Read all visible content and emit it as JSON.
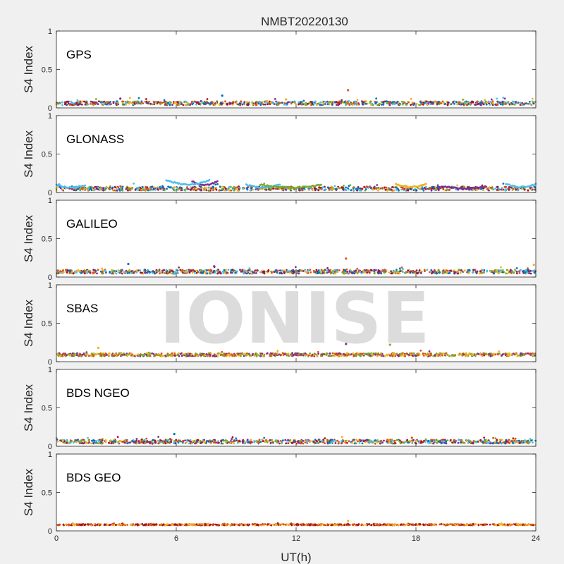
{
  "title": "NMBT20220130",
  "watermark": "IONISE",
  "chart_data": [
    {
      "type": "scatter",
      "label": "GPS",
      "ylabel": "S4 Index",
      "xlim": [
        0,
        24
      ],
      "ylim": [
        0,
        1
      ],
      "yticks": [
        0,
        0.5,
        1
      ],
      "ytick_labels": [
        "0",
        "0.5",
        "1"
      ],
      "base": 0.06,
      "spread": 0.05,
      "spikes": [
        [
          8.3,
          0.16
        ],
        [
          14.6,
          0.23
        ],
        [
          11.5,
          0.11
        ],
        [
          3.2,
          0.12
        ]
      ],
      "colors": [
        "#0072BD",
        "#D95319",
        "#EDB120",
        "#7E2F8E",
        "#77AC30",
        "#4DBEEE",
        "#A2142F"
      ]
    },
    {
      "type": "scatter",
      "label": "GLONASS",
      "ylabel": "S4 Index",
      "xlim": [
        0,
        24
      ],
      "ylim": [
        0,
        1
      ],
      "yticks": [
        0,
        0.5,
        1
      ],
      "ytick_labels": [
        "0",
        "0.5",
        "1"
      ],
      "base": 0.05,
      "spread": 0.05,
      "arcs": [
        [
          0,
          1.5,
          0.1,
          "#4DBEEE"
        ],
        [
          6.8,
          8.1,
          0.15,
          "#7E2F8E"
        ],
        [
          9.5,
          11.2,
          0.1,
          "#4DBEEE"
        ],
        [
          10.2,
          13.3,
          0.1,
          "#77AC30"
        ],
        [
          17,
          18.5,
          0.11,
          "#EDB120"
        ],
        [
          19.3,
          21.5,
          0.08,
          "#7E2F8E"
        ],
        [
          22.5,
          24,
          0.11,
          "#4DBEEE"
        ],
        [
          5.5,
          7.7,
          0.16,
          "#4DBEEE"
        ]
      ],
      "colors": [
        "#0072BD",
        "#D95319",
        "#EDB120",
        "#7E2F8E",
        "#77AC30",
        "#4DBEEE",
        "#A2142F"
      ]
    },
    {
      "type": "scatter",
      "label": "GALILEO",
      "ylabel": "S4 Index",
      "xlim": [
        0,
        24
      ],
      "ylim": [
        0,
        1
      ],
      "yticks": [
        0,
        0.5,
        1
      ],
      "ytick_labels": [
        "0",
        "0.5",
        "1"
      ],
      "base": 0.07,
      "spread": 0.05,
      "spikes": [
        [
          3.6,
          0.17
        ],
        [
          14.5,
          0.24
        ],
        [
          23.9,
          0.16
        ],
        [
          7.9,
          0.14
        ]
      ],
      "colors": [
        "#0072BD",
        "#D95319",
        "#EDB120",
        "#7E2F8E",
        "#77AC30",
        "#4DBEEE",
        "#A2142F"
      ]
    },
    {
      "type": "scatter",
      "label": "SBAS",
      "ylabel": "S4 Index",
      "xlim": [
        0,
        24
      ],
      "ylim": [
        0,
        1
      ],
      "yticks": [
        0,
        0.5,
        1
      ],
      "ytick_labels": [
        "0",
        "0.5",
        "1"
      ],
      "base": 0.09,
      "spread": 0.04,
      "spikes": [
        [
          2.1,
          0.18
        ],
        [
          14.5,
          0.23
        ],
        [
          16.7,
          0.22
        ]
      ],
      "colors": [
        "#EDB120",
        "#7E2F8E",
        "#77AC30",
        "#D95319"
      ]
    },
    {
      "type": "scatter",
      "label": "BDS NGEO",
      "ylabel": "S4 Index",
      "xlim": [
        0,
        24
      ],
      "ylim": [
        0,
        1
      ],
      "yticks": [
        0,
        0.5,
        1
      ],
      "ytick_labels": [
        "0",
        "0.5",
        "1"
      ],
      "base": 0.06,
      "spread": 0.05,
      "spikes": [
        [
          5.9,
          0.16
        ],
        [
          17.8,
          0.11
        ]
      ],
      "colors": [
        "#0072BD",
        "#D95319",
        "#EDB120",
        "#7E2F8E",
        "#77AC30",
        "#4DBEEE",
        "#A2142F"
      ]
    },
    {
      "type": "scatter",
      "label": "BDS GEO",
      "ylabel": "S4 Index",
      "xlim": [
        0,
        24
      ],
      "ylim": [
        0,
        1
      ],
      "yticks": [
        0,
        0.5,
        1
      ],
      "ytick_labels": [
        "0",
        "0.5",
        "1"
      ],
      "base": 0.08,
      "spread": 0.015,
      "spikes": [
        [
          14.6,
          0.13
        ]
      ],
      "colors": [
        "#EDB120",
        "#D95319",
        "#A2142F"
      ]
    }
  ],
  "xaxis": {
    "label": "UT(h)",
    "ticks": [
      0,
      6,
      12,
      18,
      24
    ],
    "tick_labels": [
      "0",
      "6",
      "12",
      "18",
      "24"
    ]
  }
}
